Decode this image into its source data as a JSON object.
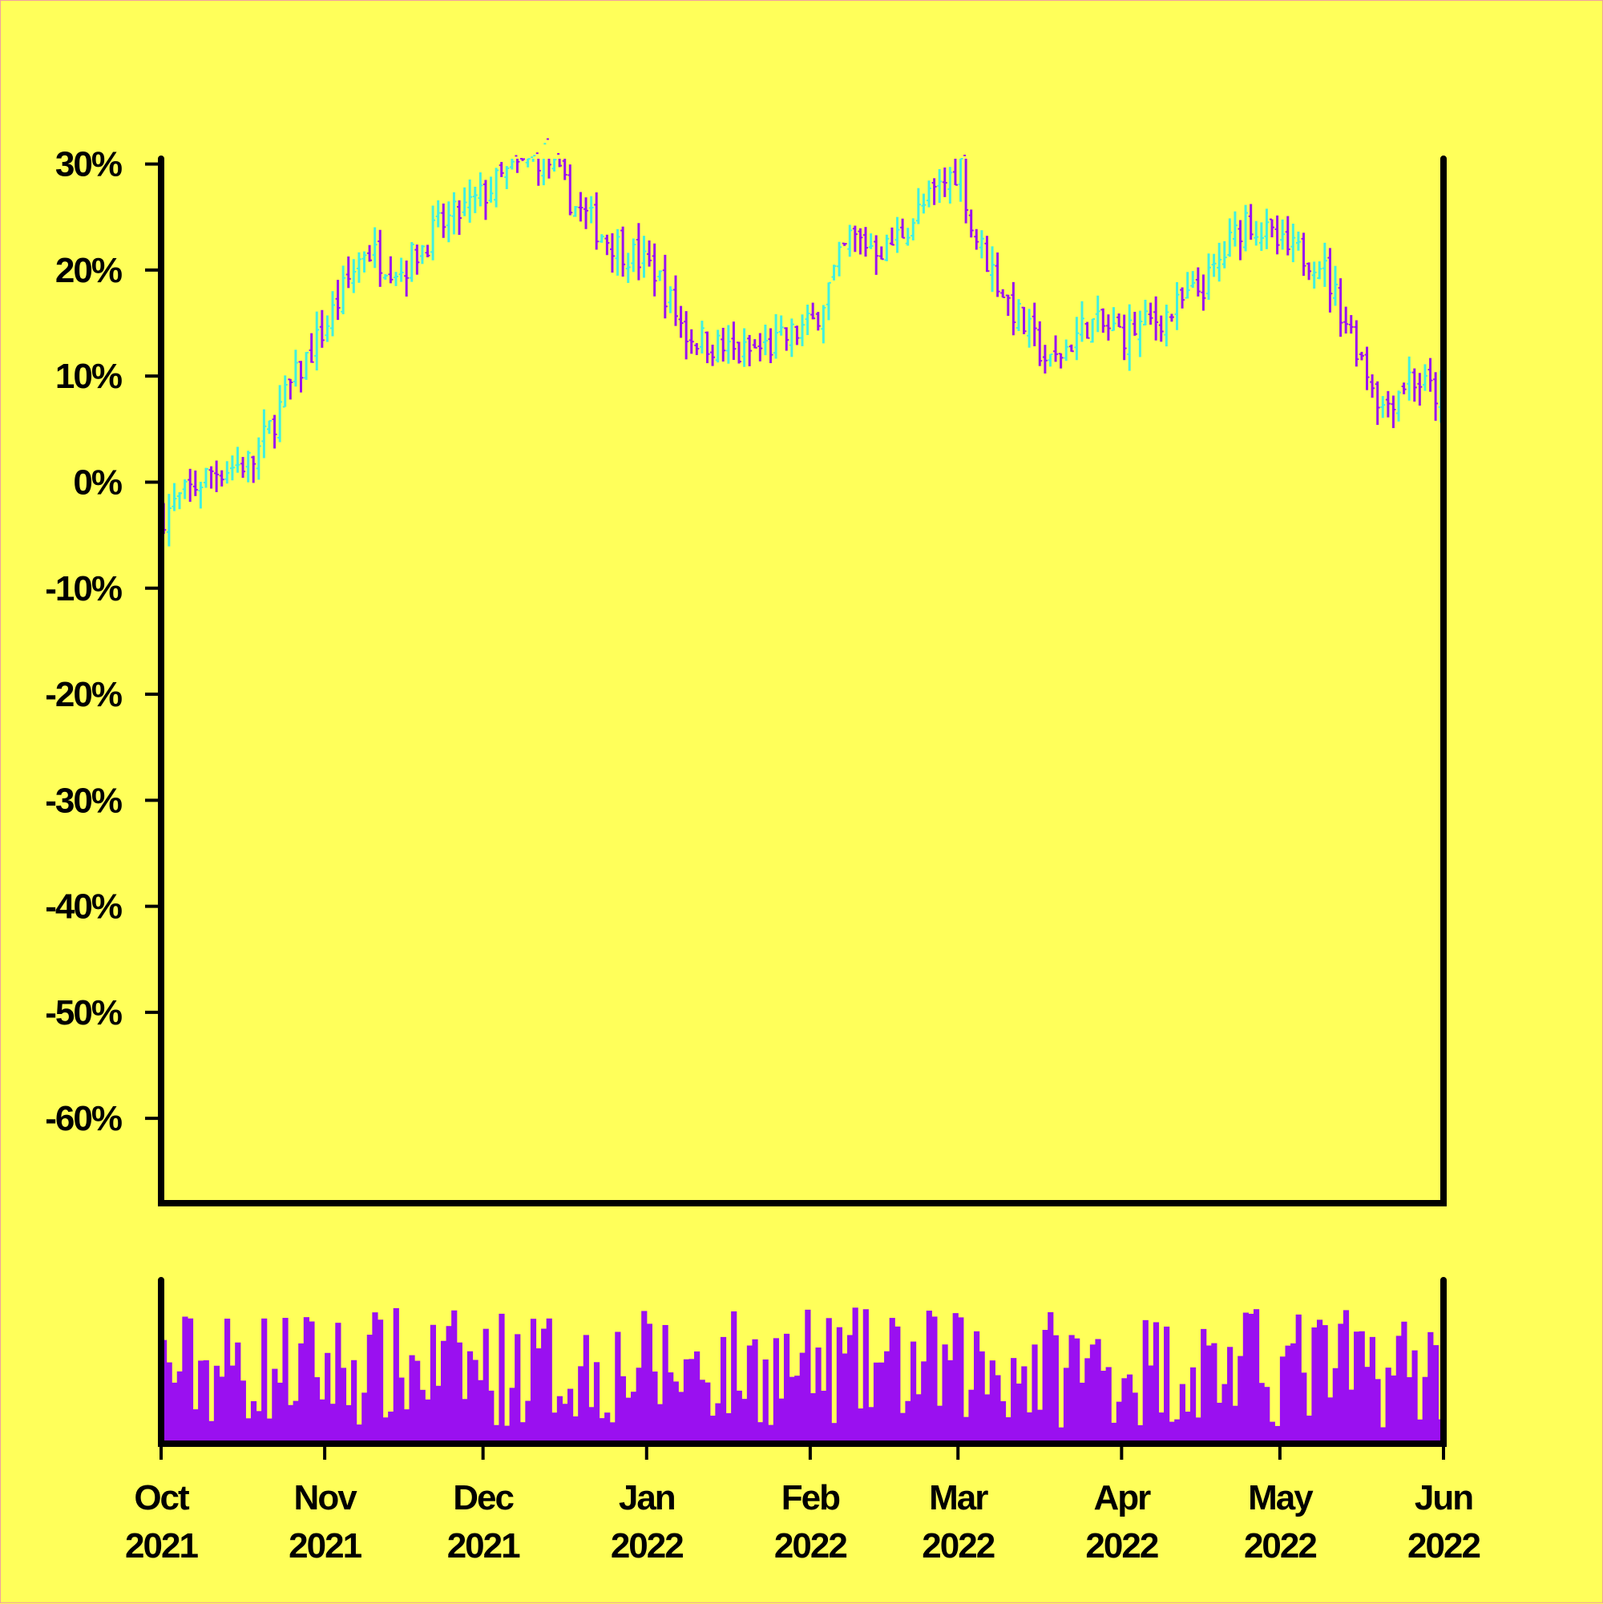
{
  "chart_data": [
    {
      "type": "ohlc",
      "panel": "price",
      "x_axis": {
        "type": "date",
        "range": [
          "2021-10-01",
          "2022-06-01"
        ],
        "ticks": [
          {
            "date": "2021-10-01",
            "label": [
              "Oct",
              "2021"
            ]
          },
          {
            "date": "2021-11-01",
            "label": [
              "Nov",
              "2021"
            ]
          },
          {
            "date": "2021-12-01",
            "label": [
              "Dec",
              "2021"
            ]
          },
          {
            "date": "2022-01-01",
            "label": [
              "Jan",
              "2022"
            ]
          },
          {
            "date": "2022-02-01",
            "label": [
              "Feb",
              "2022"
            ]
          },
          {
            "date": "2022-03-01",
            "label": [
              "Mar",
              "2022"
            ]
          },
          {
            "date": "2022-04-01",
            "label": [
              "Apr",
              "2022"
            ]
          },
          {
            "date": "2022-05-01",
            "label": [
              "May",
              "2022"
            ]
          },
          {
            "date": "2022-06-01",
            "label": [
              "Jun",
              "2022"
            ]
          }
        ]
      },
      "y_axis": {
        "unit": "percent",
        "range": [
          -68,
          30.5
        ],
        "ticks": [
          30,
          20,
          10,
          0,
          -10,
          -20,
          -30,
          -40,
          -50,
          -60
        ],
        "tick_labels": [
          "30%",
          "20%",
          "10%",
          "0%",
          "-10%",
          "-20%",
          "-30%",
          "-40%",
          "-50%",
          "-60%"
        ]
      },
      "colors": {
        "up": "#40f0e0",
        "down": "#9a10f0",
        "background": "#ffff5a",
        "axis": "#000000"
      },
      "trend_anchors": [
        {
          "date": "2021-10-01",
          "close": -3
        },
        {
          "date": "2021-10-10",
          "close": 1
        },
        {
          "date": "2021-10-18",
          "close": 2
        },
        {
          "date": "2021-10-25",
          "close": 9
        },
        {
          "date": "2021-11-01",
          "close": 15
        },
        {
          "date": "2021-11-08",
          "close": 22
        },
        {
          "date": "2021-11-15",
          "close": 20
        },
        {
          "date": "2021-11-22",
          "close": 24
        },
        {
          "date": "2021-11-28",
          "close": 26
        },
        {
          "date": "2021-12-05",
          "close": 29
        },
        {
          "date": "2021-12-12",
          "close": 31
        },
        {
          "date": "2021-12-18",
          "close": 26
        },
        {
          "date": "2021-12-24",
          "close": 23
        },
        {
          "date": "2022-01-02",
          "close": 20
        },
        {
          "date": "2022-01-08",
          "close": 14
        },
        {
          "date": "2022-01-18",
          "close": 12
        },
        {
          "date": "2022-01-25",
          "close": 13
        },
        {
          "date": "2022-02-01",
          "close": 15
        },
        {
          "date": "2022-02-08",
          "close": 23
        },
        {
          "date": "2022-02-15",
          "close": 22
        },
        {
          "date": "2022-02-22",
          "close": 26
        },
        {
          "date": "2022-03-01",
          "close": 30
        },
        {
          "date": "2022-03-03",
          "close": 24
        },
        {
          "date": "2022-03-10",
          "close": 17
        },
        {
          "date": "2022-03-18",
          "close": 11
        },
        {
          "date": "2022-03-25",
          "close": 15
        },
        {
          "date": "2022-04-01",
          "close": 14
        },
        {
          "date": "2022-04-10",
          "close": 16
        },
        {
          "date": "2022-04-17",
          "close": 19
        },
        {
          "date": "2022-04-24",
          "close": 25
        },
        {
          "date": "2022-05-01",
          "close": 22
        },
        {
          "date": "2022-05-08",
          "close": 21
        },
        {
          "date": "2022-05-15",
          "close": 13
        },
        {
          "date": "2022-05-20",
          "close": 7
        },
        {
          "date": "2022-05-25",
          "close": 10
        },
        {
          "date": "2022-05-31",
          "close": 8
        }
      ]
    },
    {
      "type": "bar",
      "panel": "volume",
      "colors": {
        "bar": "#9a10f0"
      },
      "y_axis": {
        "ticks": [],
        "tick_labels": []
      }
    }
  ]
}
